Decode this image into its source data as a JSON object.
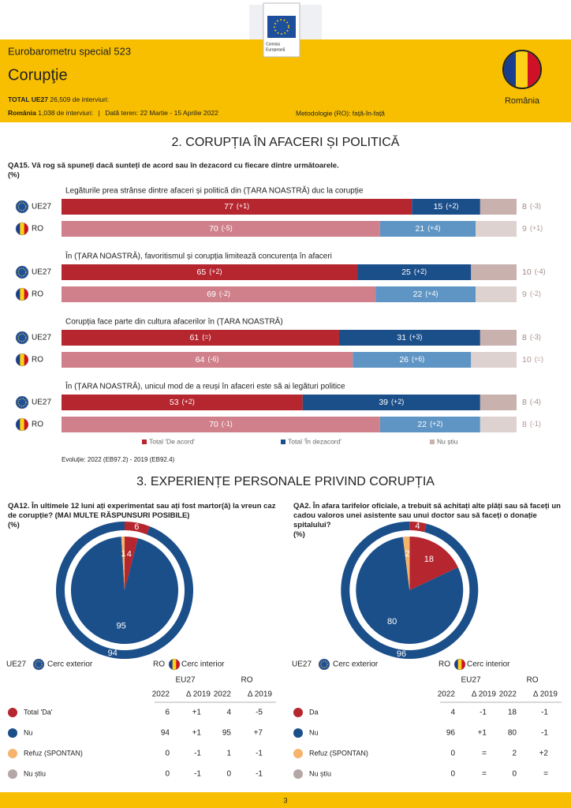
{
  "header": {
    "series": "Eurobarometru special 523",
    "title": "Corupţie",
    "total_label": "TOTAL UE27",
    "total_text": "26,509 de interviuri:",
    "country_label": "România",
    "country_text": "1,038 de interviuri:",
    "separator": "|",
    "dates": "Dată teren: 22 Martie - 15 Aprilie 2022",
    "method": "Metodologie (RO): față-în-față",
    "country": "România",
    "logo_line1": "Comisia",
    "logo_line2": "Europeană"
  },
  "section1": {
    "type": "bar",
    "title": "2. CORUPȚIA ÎN AFACERI ȘI POLITICĂ",
    "question": "QA15. Vă rog să spuneți dacă sunteți de acord sau în dezacord cu fiecare dintre următoarele.",
    "unit": "(%)",
    "xlim": [
      0,
      100
    ],
    "legend": [
      {
        "name": "Total 'De acord'",
        "color": "#b5262f"
      },
      {
        "name": "Total 'În dezacord'",
        "color": "#1b4f8a"
      },
      {
        "name": "Nu știu",
        "color": "#c9b1ae"
      }
    ],
    "items": [
      {
        "label": "Legăturile prea strânse dintre afaceri și politică din (ȚARA NOASTRĂ) duc la corupție",
        "rows": [
          {
            "name": "UE27",
            "colors": [
              "#b5262f",
              "#1b4f8a",
              "#c9b1ae"
            ],
            "values": [
              77,
              15,
              8
            ],
            "changes": [
              "(+1)",
              "(+2)",
              "(-3)"
            ]
          },
          {
            "name": "RO",
            "colors": [
              "#d0808a",
              "#5f95c4",
              "#ddd2d0"
            ],
            "values": [
              70,
              21,
              9
            ],
            "changes": [
              "(-5)",
              "(+4)",
              "(+1)"
            ]
          }
        ]
      },
      {
        "label": "În (ȚARA NOASTRĂ), favoritismul și corupția limitează concurența în afaceri",
        "rows": [
          {
            "name": "UE27",
            "colors": [
              "#b5262f",
              "#1b4f8a",
              "#c9b1ae"
            ],
            "values": [
              65,
              25,
              10
            ],
            "changes": [
              "(+2)",
              "(+2)",
              "(-4)"
            ]
          },
          {
            "name": "RO",
            "colors": [
              "#d0808a",
              "#5f95c4",
              "#ddd2d0"
            ],
            "values": [
              69,
              22,
              9
            ],
            "changes": [
              "(-2)",
              "(+4)",
              "(-2)"
            ]
          }
        ]
      },
      {
        "label": "Corupția face parte din cultura afacerilor în (ȚARA NOASTRĂ)",
        "rows": [
          {
            "name": "UE27",
            "colors": [
              "#b5262f",
              "#1b4f8a",
              "#c9b1ae"
            ],
            "values": [
              61,
              31,
              8
            ],
            "changes": [
              "(=)",
              "(+3)",
              "(-3)"
            ]
          },
          {
            "name": "RO",
            "colors": [
              "#d0808a",
              "#5f95c4",
              "#ddd2d0"
            ],
            "values": [
              64,
              26,
              10
            ],
            "changes": [
              "(-6)",
              "(+6)",
              "(=)"
            ]
          }
        ]
      },
      {
        "label": "În (ȚARA NOASTRĂ), unicul mod de a reuși în afaceri este să ai legături politice",
        "rows": [
          {
            "name": "UE27",
            "colors": [
              "#b5262f",
              "#1b4f8a",
              "#c9b1ae"
            ],
            "values": [
              53,
              39,
              8
            ],
            "changes": [
              "(+2)",
              "(+2)",
              "(-4)"
            ]
          },
          {
            "name": "RO",
            "colors": [
              "#d0808a",
              "#5f95c4",
              "#ddd2d0"
            ],
            "values": [
              70,
              22,
              8
            ],
            "changes": [
              "(-1)",
              "(+2)",
              "(-1)"
            ]
          }
        ]
      }
    ],
    "note": "Evoluție: 2022 (EB97.2) - 2019 (EB92.4)"
  },
  "section2": {
    "type": "pie",
    "title": "3. EXPERIENȚE PERSONALE PRIVIND CORUPȚIA",
    "outer_label": "UE27",
    "outer_text": "Cerc exterior",
    "inner_label": "RO",
    "inner_text": "Cerc interior",
    "col_eu": "EU27",
    "col_ro": "RO",
    "col_year": "2022",
    "col_delta": "Δ 2019",
    "panels": [
      {
        "question": "QA12. În ultimele 12 luni ați experimentat sau ați fost martor(ă) la vreun caz de corupție? (MAI MULTE RĂSPUNSURI POSIBILE)",
        "unit": "(%)",
        "rows": [
          {
            "label": "Total 'Da'",
            "color": "#b5262f",
            "eu": 6,
            "eu_delta": "+1",
            "ro": 4,
            "ro_delta": "-5"
          },
          {
            "label": "Nu",
            "color": "#1b4f8a",
            "eu": 94,
            "eu_delta": "+1",
            "ro": 95,
            "ro_delta": "+7"
          },
          {
            "label": "Refuz (SPONTAN)",
            "color": "#f6b36c",
            "eu": 0,
            "eu_delta": "-1",
            "ro": 1,
            "ro_delta": "-1"
          },
          {
            "label": "Nu știu",
            "color": "#b4a7a5",
            "eu": 0,
            "eu_delta": "-1",
            "ro": 0,
            "ro_delta": "-1"
          }
        ]
      },
      {
        "question": "QA2. În afara tarifelor oficiale, a trebuit să achitați alte plăți sau să faceți un cadou valoros unei asistente sau unui doctor sau să faceți o donație spitalului?",
        "unit": "(%)",
        "rows": [
          {
            "label": "Da",
            "color": "#b5262f",
            "eu": 4,
            "eu_delta": "-1",
            "ro": 18,
            "ro_delta": "-1"
          },
          {
            "label": "Nu",
            "color": "#1b4f8a",
            "eu": 96,
            "eu_delta": "+1",
            "ro": 80,
            "ro_delta": "-1"
          },
          {
            "label": "Refuz (SPONTAN)",
            "color": "#f6b36c",
            "eu": 0,
            "eu_delta": "=",
            "ro": 2,
            "ro_delta": "+2"
          },
          {
            "label": "Nu știu",
            "color": "#b4a7a5",
            "eu": 0,
            "eu_delta": "=",
            "ro": 0,
            "ro_delta": "="
          }
        ]
      }
    ]
  },
  "footer": {
    "page": "3"
  }
}
